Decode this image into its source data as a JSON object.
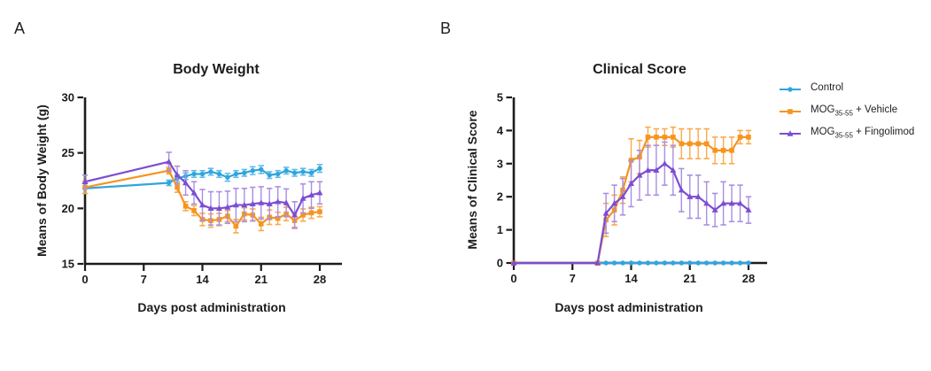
{
  "panel_letters": [
    "A",
    "B"
  ],
  "legend": {
    "items": [
      {
        "pre": "Control",
        "sub": "",
        "post": "",
        "color": "#2FA5DE",
        "marker": "circle"
      },
      {
        "pre": "MOG",
        "sub": "35-55",
        "post": " + Vehicle",
        "color": "#F7941E",
        "marker": "square"
      },
      {
        "pre": "MOG",
        "sub": "35-55",
        "post": " + Fingolimod",
        "color": "#7C4DD3",
        "marker": "triangle"
      }
    ]
  },
  "chart_data": [
    {
      "type": "line",
      "title": "Body Weight",
      "xlabel": "Days post administration",
      "ylabel": "Means of Body Weight (g)",
      "xlim": [
        0,
        28
      ],
      "ylim": [
        15,
        30
      ],
      "xticks": [
        0,
        7,
        14,
        21,
        28
      ],
      "yticks": [
        15,
        20,
        25,
        30
      ],
      "legend_position": "none",
      "x": [
        0,
        10,
        11,
        12,
        13,
        14,
        15,
        16,
        17,
        18,
        19,
        20,
        21,
        22,
        23,
        24,
        25,
        26,
        27,
        28
      ],
      "series": [
        {
          "name": "Control",
          "color": "#2FA5DE",
          "error_color": "#5FBCE8",
          "marker": "circle",
          "values": [
            21.8,
            22.3,
            22.7,
            22.9,
            23.1,
            23.1,
            23.3,
            23.1,
            22.8,
            23.1,
            23.2,
            23.4,
            23.5,
            23.0,
            23.1,
            23.4,
            23.2,
            23.3,
            23.2,
            23.6
          ],
          "errors": [
            0.45,
            0.25,
            0.3,
            0.3,
            0.3,
            0.3,
            0.3,
            0.3,
            0.35,
            0.3,
            0.3,
            0.35,
            0.35,
            0.3,
            0.3,
            0.3,
            0.3,
            0.3,
            0.3,
            0.35
          ]
        },
        {
          "name": "MOG35-55 + Vehicle",
          "color": "#F7941E",
          "error_color": "#F9AA4B",
          "marker": "square",
          "values": [
            21.9,
            23.4,
            21.9,
            20.2,
            19.8,
            19.0,
            18.9,
            19.0,
            19.3,
            18.4,
            19.5,
            19.4,
            18.6,
            19.2,
            19.1,
            19.5,
            18.9,
            19.4,
            19.6,
            19.7
          ],
          "errors": [
            0.55,
            0.3,
            0.45,
            0.4,
            0.45,
            0.55,
            0.6,
            0.55,
            0.5,
            0.6,
            0.55,
            0.55,
            0.6,
            0.65,
            0.55,
            0.6,
            0.6,
            0.55,
            0.5,
            0.45
          ]
        },
        {
          "name": "MOG35-55 + Fingolimod",
          "color": "#7C4DD3",
          "error_color": "#A98FE2",
          "marker": "triangle",
          "values": [
            22.4,
            24.2,
            23.0,
            22.3,
            21.4,
            20.3,
            20.0,
            20.0,
            20.1,
            20.3,
            20.3,
            20.4,
            20.5,
            20.4,
            20.6,
            20.5,
            19.4,
            20.9,
            21.2,
            21.4
          ],
          "errors": [
            0.6,
            0.85,
            0.8,
            1.1,
            1.0,
            1.4,
            1.5,
            1.5,
            1.45,
            1.5,
            1.5,
            1.5,
            1.45,
            1.4,
            1.35,
            1.25,
            1.2,
            1.3,
            1.2,
            1.0
          ]
        }
      ]
    },
    {
      "type": "line",
      "title": "Clinical Score",
      "xlabel": "Days post administration",
      "ylabel": "Means of Clinical Score",
      "xlim": [
        0,
        28
      ],
      "ylim": [
        0,
        5
      ],
      "xticks": [
        0,
        7,
        14,
        21,
        28
      ],
      "yticks": [
        0,
        1,
        2,
        3,
        4,
        5
      ],
      "legend_position": "right",
      "x": [
        0,
        10,
        11,
        12,
        13,
        14,
        15,
        16,
        17,
        18,
        19,
        20,
        21,
        22,
        23,
        24,
        25,
        26,
        27,
        28
      ],
      "series": [
        {
          "name": "Control",
          "color": "#2FA5DE",
          "error_color": "#5FBCE8",
          "marker": "circle",
          "values": [
            0,
            0,
            0,
            0,
            0,
            0,
            0,
            0,
            0,
            0,
            0,
            0,
            0,
            0,
            0,
            0,
            0,
            0,
            0,
            0
          ],
          "errors": [
            0,
            0,
            0,
            0,
            0,
            0,
            0,
            0,
            0,
            0,
            0,
            0,
            0,
            0,
            0,
            0,
            0,
            0,
            0,
            0
          ]
        },
        {
          "name": "MOG35-55 + Vehicle",
          "color": "#F7941E",
          "error_color": "#F9AA4B",
          "marker": "square",
          "values": [
            0,
            0,
            1.3,
            1.6,
            2.2,
            3.1,
            3.2,
            3.8,
            3.8,
            3.8,
            3.8,
            3.6,
            3.6,
            3.6,
            3.6,
            3.4,
            3.4,
            3.4,
            3.8,
            3.8
          ],
          "errors": [
            0,
            0,
            0.5,
            0.45,
            0.4,
            0.65,
            0.5,
            0.3,
            0.25,
            0.25,
            0.3,
            0.45,
            0.45,
            0.45,
            0.45,
            0.4,
            0.4,
            0.4,
            0.2,
            0.2
          ]
        },
        {
          "name": "MOG35-55 + Fingolimod",
          "color": "#7C4DD3",
          "error_color": "#A98FE2",
          "marker": "triangle",
          "values": [
            0,
            0,
            1.5,
            1.8,
            2.0,
            2.4,
            2.65,
            2.8,
            2.8,
            3.0,
            2.8,
            2.2,
            2.0,
            2.0,
            1.8,
            1.6,
            1.8,
            1.8,
            1.8,
            1.6
          ],
          "errors": [
            0,
            0,
            0.6,
            0.55,
            0.55,
            0.7,
            0.75,
            0.75,
            0.75,
            0.65,
            0.75,
            0.65,
            0.65,
            0.65,
            0.65,
            0.5,
            0.65,
            0.55,
            0.55,
            0.4
          ]
        }
      ]
    }
  ]
}
